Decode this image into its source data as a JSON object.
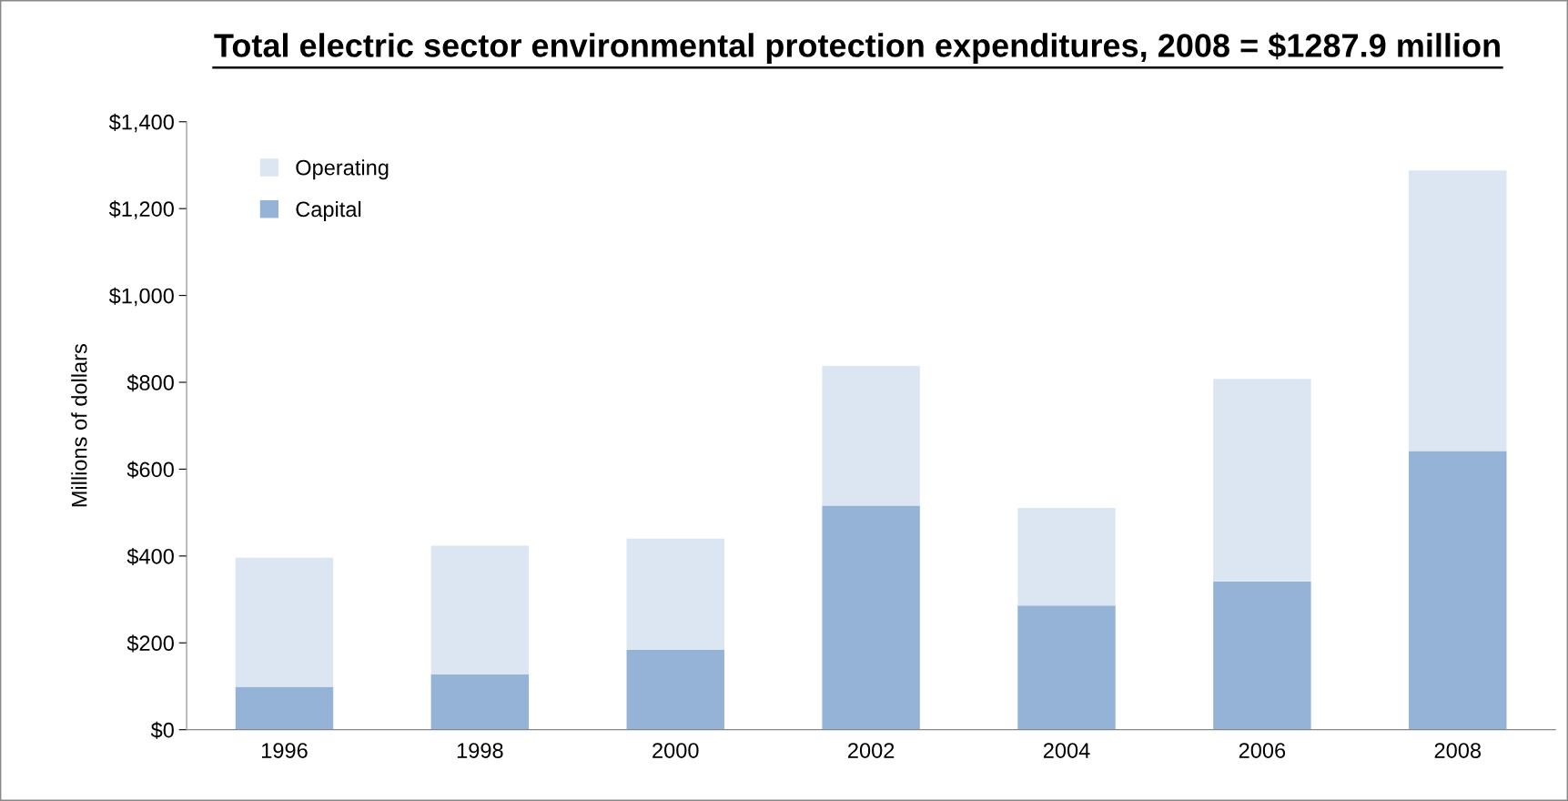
{
  "chart_data": {
    "type": "bar",
    "title": "Total electric sector environmental protection expenditures, 2008 = $1287.9 million",
    "ylabel": "Millions of dollars",
    "categories": [
      "1996",
      "1998",
      "2000",
      "2002",
      "2004",
      "2006",
      "2008"
    ],
    "stacked": true,
    "series": [
      {
        "name": "Capital",
        "color": "#95b3d7",
        "values": [
          99,
          127,
          184,
          516,
          286,
          341,
          642
        ]
      },
      {
        "name": "Operating",
        "color": "#dce6f2",
        "values": [
          297,
          297,
          256,
          322,
          225,
          467,
          646
        ]
      }
    ],
    "ylim": [
      0,
      1400
    ],
    "yticks": [
      {
        "value": 0,
        "label": "$0"
      },
      {
        "value": 200,
        "label": "$200"
      },
      {
        "value": 400,
        "label": "$400"
      },
      {
        "value": 600,
        "label": "$600"
      },
      {
        "value": 800,
        "label": "$800"
      },
      {
        "value": 1000,
        "label": "$1,000"
      },
      {
        "value": 1200,
        "label": "$1,200"
      },
      {
        "value": 1400,
        "label": "$1,400"
      }
    ],
    "grid": false,
    "legend": "top left"
  }
}
